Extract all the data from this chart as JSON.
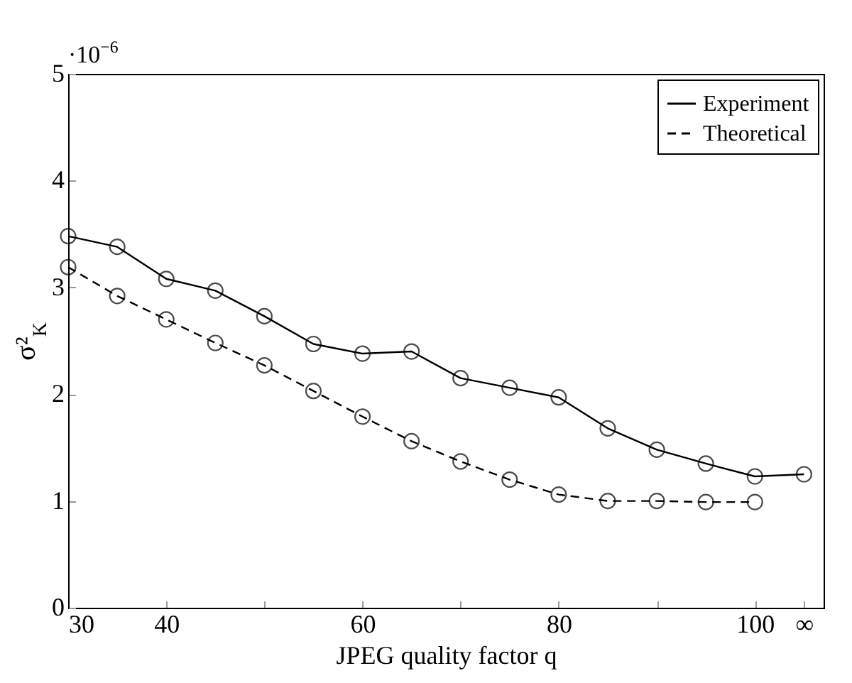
{
  "chart_data": {
    "type": "line",
    "xlabel": "JPEG quality factor q",
    "ylabel": "σ²$_{K}$",
    "annotations": [
      "·10$^{−6}$"
    ],
    "x": [
      30,
      35,
      40,
      45,
      50,
      55,
      60,
      65,
      70,
      75,
      80,
      85,
      90,
      95,
      100,
      105
    ],
    "series": [
      {
        "name": "Experiment",
        "color": "#000000",
        "line_style": "solid",
        "values": [
          3.48,
          3.38,
          3.08,
          2.97,
          2.73,
          2.47,
          2.38,
          2.4,
          2.15,
          2.06,
          1.97,
          1.68,
          1.48,
          1.35,
          1.23,
          1.25
        ]
      },
      {
        "name": "Theoretical",
        "color": "#000000",
        "line_style": "dashed",
        "x": [
          30,
          35,
          40,
          45,
          50,
          55,
          60,
          65,
          70,
          75,
          80,
          85,
          90,
          95,
          100
        ],
        "values": [
          3.19,
          2.92,
          2.7,
          2.48,
          2.27,
          2.03,
          1.79,
          1.56,
          1.37,
          1.2,
          1.06,
          1.0,
          1.0,
          0.99,
          0.99
        ]
      }
    ],
    "xlim": [
      30,
      107
    ],
    "xticks": [
      30,
      40,
      {
        "value": 50,
        "label": null
      },
      60,
      {
        "value": 70,
        "label": null
      },
      80,
      {
        "value": 90,
        "label": null
      },
      100,
      {
        "value": 105,
        "label": "∞"
      }
    ],
    "ylim": [
      0,
      5
    ],
    "yticks": [
      0,
      1,
      2,
      3,
      4,
      5
    ],
    "marker": "circle",
    "legend": "top right",
    "grid": false
  }
}
